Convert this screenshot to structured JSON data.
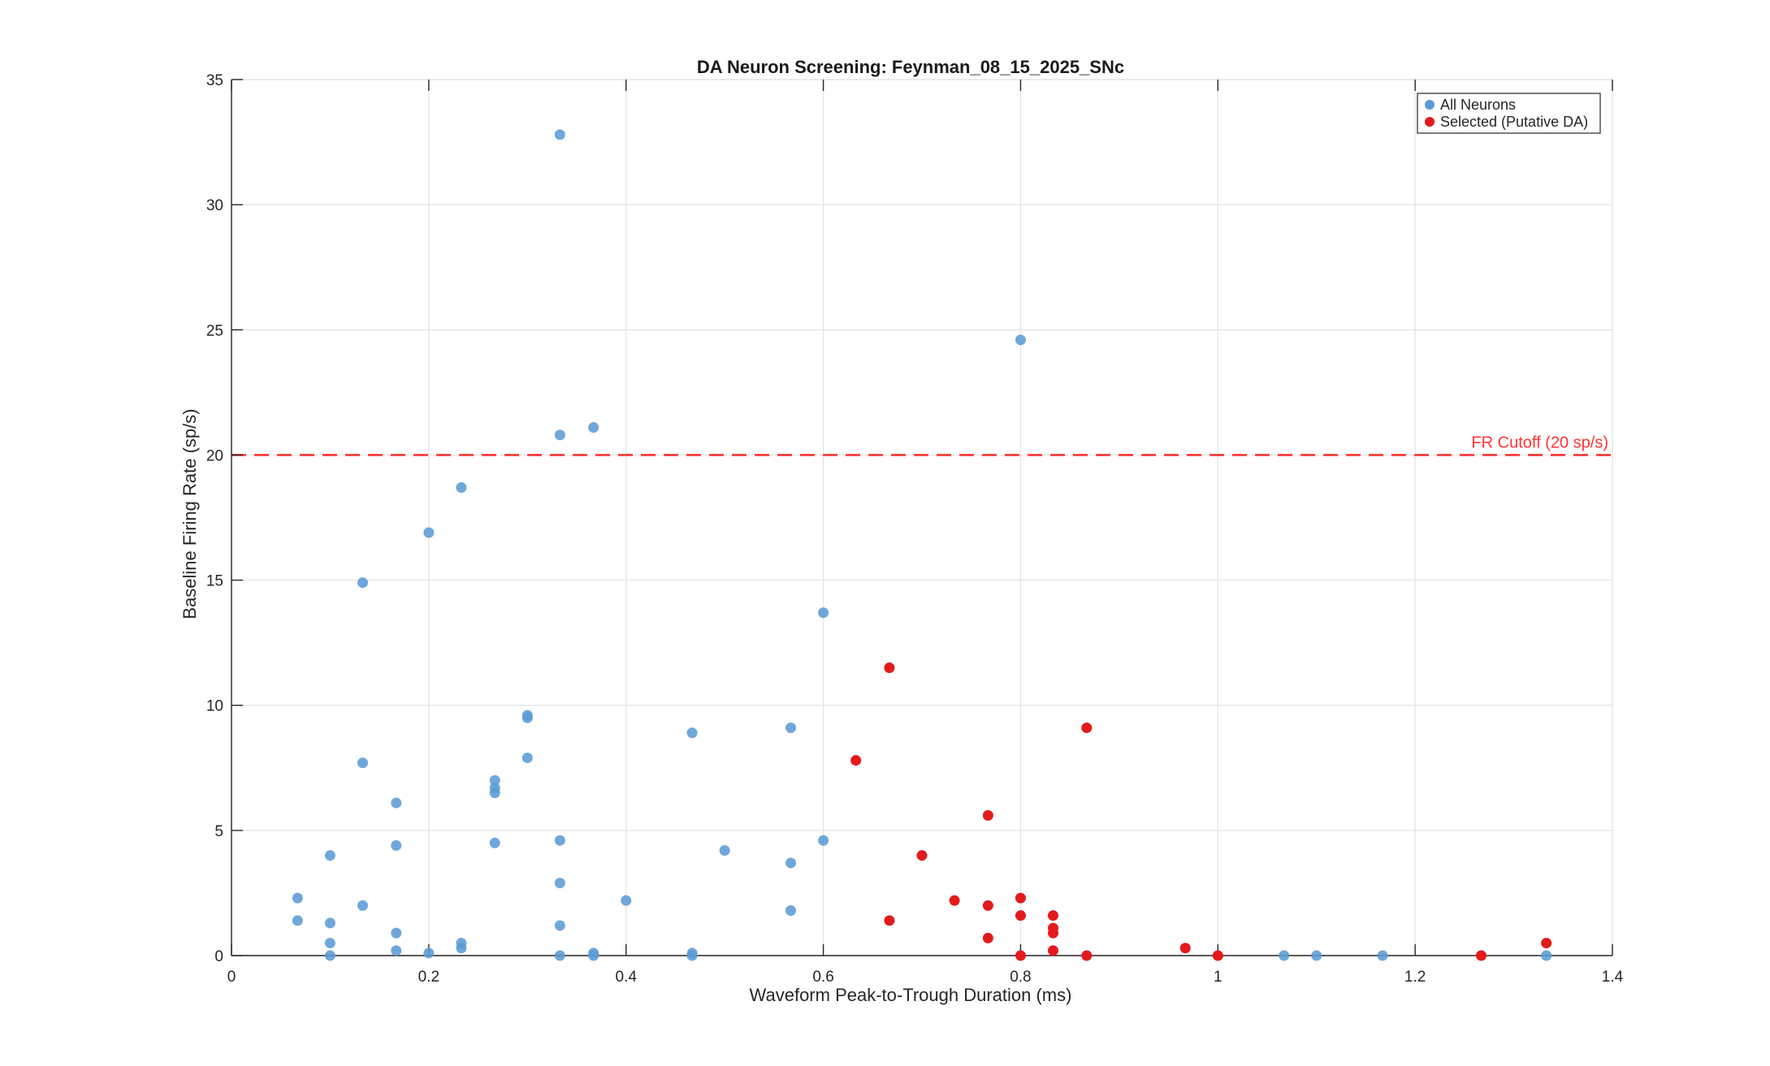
{
  "chart_data": {
    "type": "scatter",
    "title": "DA Neuron Screening: Feynman_08_15_2025_SNc",
    "xlabel": "Waveform Peak-to-Trough Duration (ms)",
    "ylabel": "Baseline Firing Rate (sp/s)",
    "xlim": [
      0,
      1.4
    ],
    "ylim": [
      0,
      35
    ],
    "xticks": [
      0,
      0.2,
      0.4,
      0.6,
      0.8,
      1,
      1.2,
      1.4
    ],
    "xtick_labels": [
      "0",
      "0.2",
      "0.4",
      "0.6",
      "0.8",
      "1",
      "1.2",
      "1.4"
    ],
    "yticks": [
      0,
      5,
      10,
      15,
      20,
      25,
      30,
      35
    ],
    "ytick_labels": [
      "0",
      "5",
      "10",
      "15",
      "20",
      "25",
      "30",
      "35"
    ],
    "grid": true,
    "legend_position": "top-right",
    "series": [
      {
        "name": "All Neurons",
        "color": "#5B9BD5",
        "points": [
          [
            0.333,
            32.8
          ],
          [
            0.8,
            24.6
          ],
          [
            0.367,
            21.1
          ],
          [
            0.333,
            20.8
          ],
          [
            0.233,
            18.7
          ],
          [
            0.2,
            16.9
          ],
          [
            0.133,
            14.9
          ],
          [
            0.6,
            13.7
          ],
          [
            0.3,
            9.6
          ],
          [
            0.3,
            9.5
          ],
          [
            0.567,
            9.1
          ],
          [
            0.467,
            8.9
          ],
          [
            0.3,
            7.9
          ],
          [
            0.133,
            7.7
          ],
          [
            0.267,
            7.0
          ],
          [
            0.267,
            6.7
          ],
          [
            0.267,
            6.5
          ],
          [
            0.167,
            6.1
          ],
          [
            0.333,
            4.6
          ],
          [
            0.6,
            4.6
          ],
          [
            0.267,
            4.5
          ],
          [
            0.167,
            4.4
          ],
          [
            0.5,
            4.2
          ],
          [
            0.1,
            4.0
          ],
          [
            0.567,
            3.7
          ],
          [
            0.333,
            2.9
          ],
          [
            0.067,
            2.3
          ],
          [
            0.4,
            2.2
          ],
          [
            0.133,
            2.0
          ],
          [
            0.567,
            1.8
          ],
          [
            0.067,
            1.4
          ],
          [
            0.1,
            1.3
          ],
          [
            0.333,
            1.2
          ],
          [
            0.167,
            0.9
          ],
          [
            0.1,
            0.5
          ],
          [
            0.233,
            0.5
          ],
          [
            0.233,
            0.3
          ],
          [
            0.167,
            0.2
          ],
          [
            0.2,
            0.1
          ],
          [
            0.1,
            0.0
          ],
          [
            0.333,
            0.0
          ],
          [
            0.367,
            0.1
          ],
          [
            0.367,
            0.0
          ],
          [
            0.467,
            0.1
          ],
          [
            0.467,
            0.0
          ],
          [
            1.067,
            0.0
          ],
          [
            1.1,
            0.0
          ],
          [
            1.167,
            0.0
          ],
          [
            1.333,
            0.0
          ]
        ]
      },
      {
        "name": "Selected (Putative DA)",
        "color": "#E31A1C",
        "points": [
          [
            0.667,
            11.5
          ],
          [
            0.867,
            9.1
          ],
          [
            0.633,
            7.8
          ],
          [
            0.767,
            5.6
          ],
          [
            0.7,
            4.0
          ],
          [
            0.733,
            2.2
          ],
          [
            0.8,
            2.3
          ],
          [
            0.767,
            2.0
          ],
          [
            0.8,
            1.6
          ],
          [
            0.833,
            1.6
          ],
          [
            0.667,
            1.4
          ],
          [
            0.833,
            1.1
          ],
          [
            0.833,
            0.9
          ],
          [
            0.767,
            0.7
          ],
          [
            1.333,
            0.5
          ],
          [
            0.967,
            0.3
          ],
          [
            0.833,
            0.2
          ],
          [
            0.8,
            0.0
          ],
          [
            0.867,
            0.0
          ],
          [
            1.0,
            0.0
          ],
          [
            1.267,
            0.0
          ]
        ]
      }
    ],
    "cutoff": {
      "y": 20,
      "label": "FR Cutoff (20 sp/s)",
      "color": "#FF3333"
    }
  }
}
